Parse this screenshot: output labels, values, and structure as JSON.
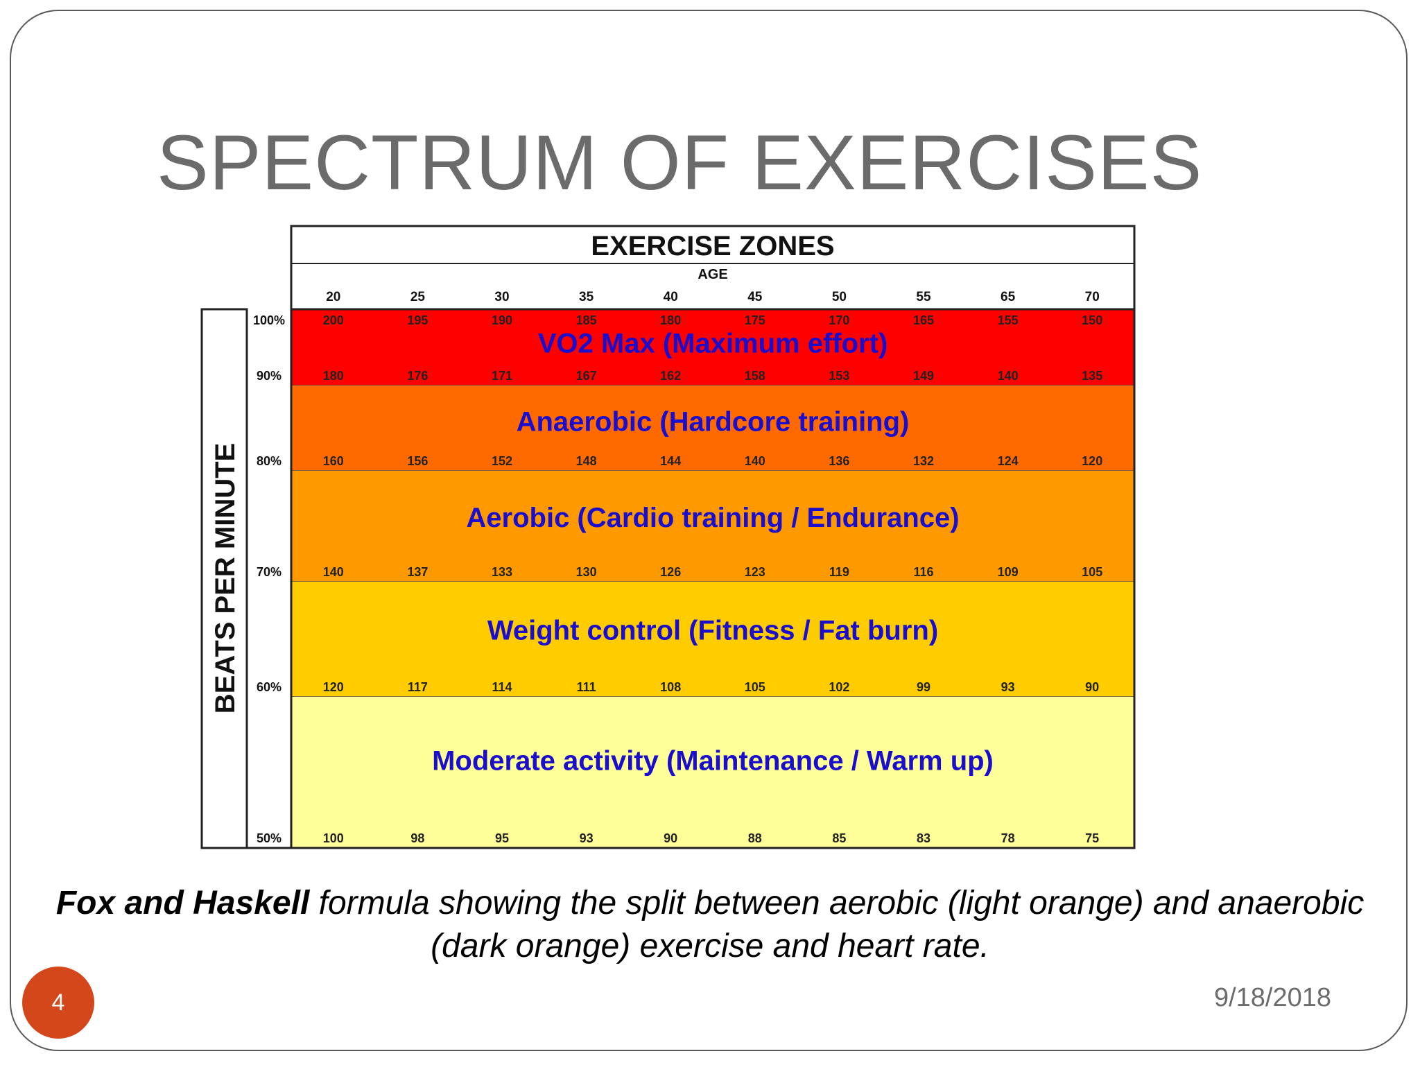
{
  "slide": {
    "title": "SPECTRUM OF EXERCISES",
    "caption_bold": "Fox and Haskell",
    "caption_rest": " formula showing the split between aerobic (light orange) and anaerobic (dark orange) exercise and heart rate.",
    "slide_number": "4",
    "date": "9/18/2018"
  },
  "chart_data": {
    "type": "table",
    "title": "EXERCISE ZONES",
    "xlabel": "AGE",
    "ylabel": "BEATS PER MINUTE",
    "ages": [
      "20",
      "25",
      "30",
      "35",
      "40",
      "45",
      "50",
      "55",
      "65",
      "70"
    ],
    "rows": [
      {
        "percent": "100%",
        "values": [
          "200",
          "195",
          "190",
          "185",
          "180",
          "175",
          "170",
          "165",
          "155",
          "150"
        ]
      },
      {
        "percent": "90%",
        "values": [
          "180",
          "176",
          "171",
          "167",
          "162",
          "158",
          "153",
          "149",
          "140",
          "135"
        ]
      },
      {
        "percent": "80%",
        "values": [
          "160",
          "156",
          "152",
          "148",
          "144",
          "140",
          "136",
          "132",
          "124",
          "120"
        ]
      },
      {
        "percent": "70%",
        "values": [
          "140",
          "137",
          "133",
          "130",
          "126",
          "123",
          "119",
          "116",
          "109",
          "105"
        ]
      },
      {
        "percent": "60%",
        "values": [
          "120",
          "117",
          "114",
          "111",
          "108",
          "105",
          "102",
          "99",
          "93",
          "90"
        ]
      },
      {
        "percent": "50%",
        "values": [
          "100",
          "98",
          "95",
          "93",
          "90",
          "88",
          "85",
          "83",
          "78",
          "75"
        ]
      }
    ],
    "zones": [
      {
        "label": "VO2 Max (Maximum effort)",
        "color": "#ff0000",
        "from": "90%",
        "to": "100%"
      },
      {
        "label": "Anaerobic (Hardcore training)",
        "color": "#ff6a00",
        "from": "80%",
        "to": "90%"
      },
      {
        "label": "Aerobic (Cardio training / Endurance)",
        "color": "#ff9900",
        "from": "70%",
        "to": "80%"
      },
      {
        "label": "Weight control (Fitness / Fat burn)",
        "color": "#ffcc00",
        "from": "60%",
        "to": "70%"
      },
      {
        "label": "Moderate activity (Maintenance / Warm up)",
        "color": "#ffff99",
        "from": "50%",
        "to": "60%"
      }
    ],
    "colors": {
      "zone_label": "#1a0dcc",
      "border": "#222222"
    }
  }
}
